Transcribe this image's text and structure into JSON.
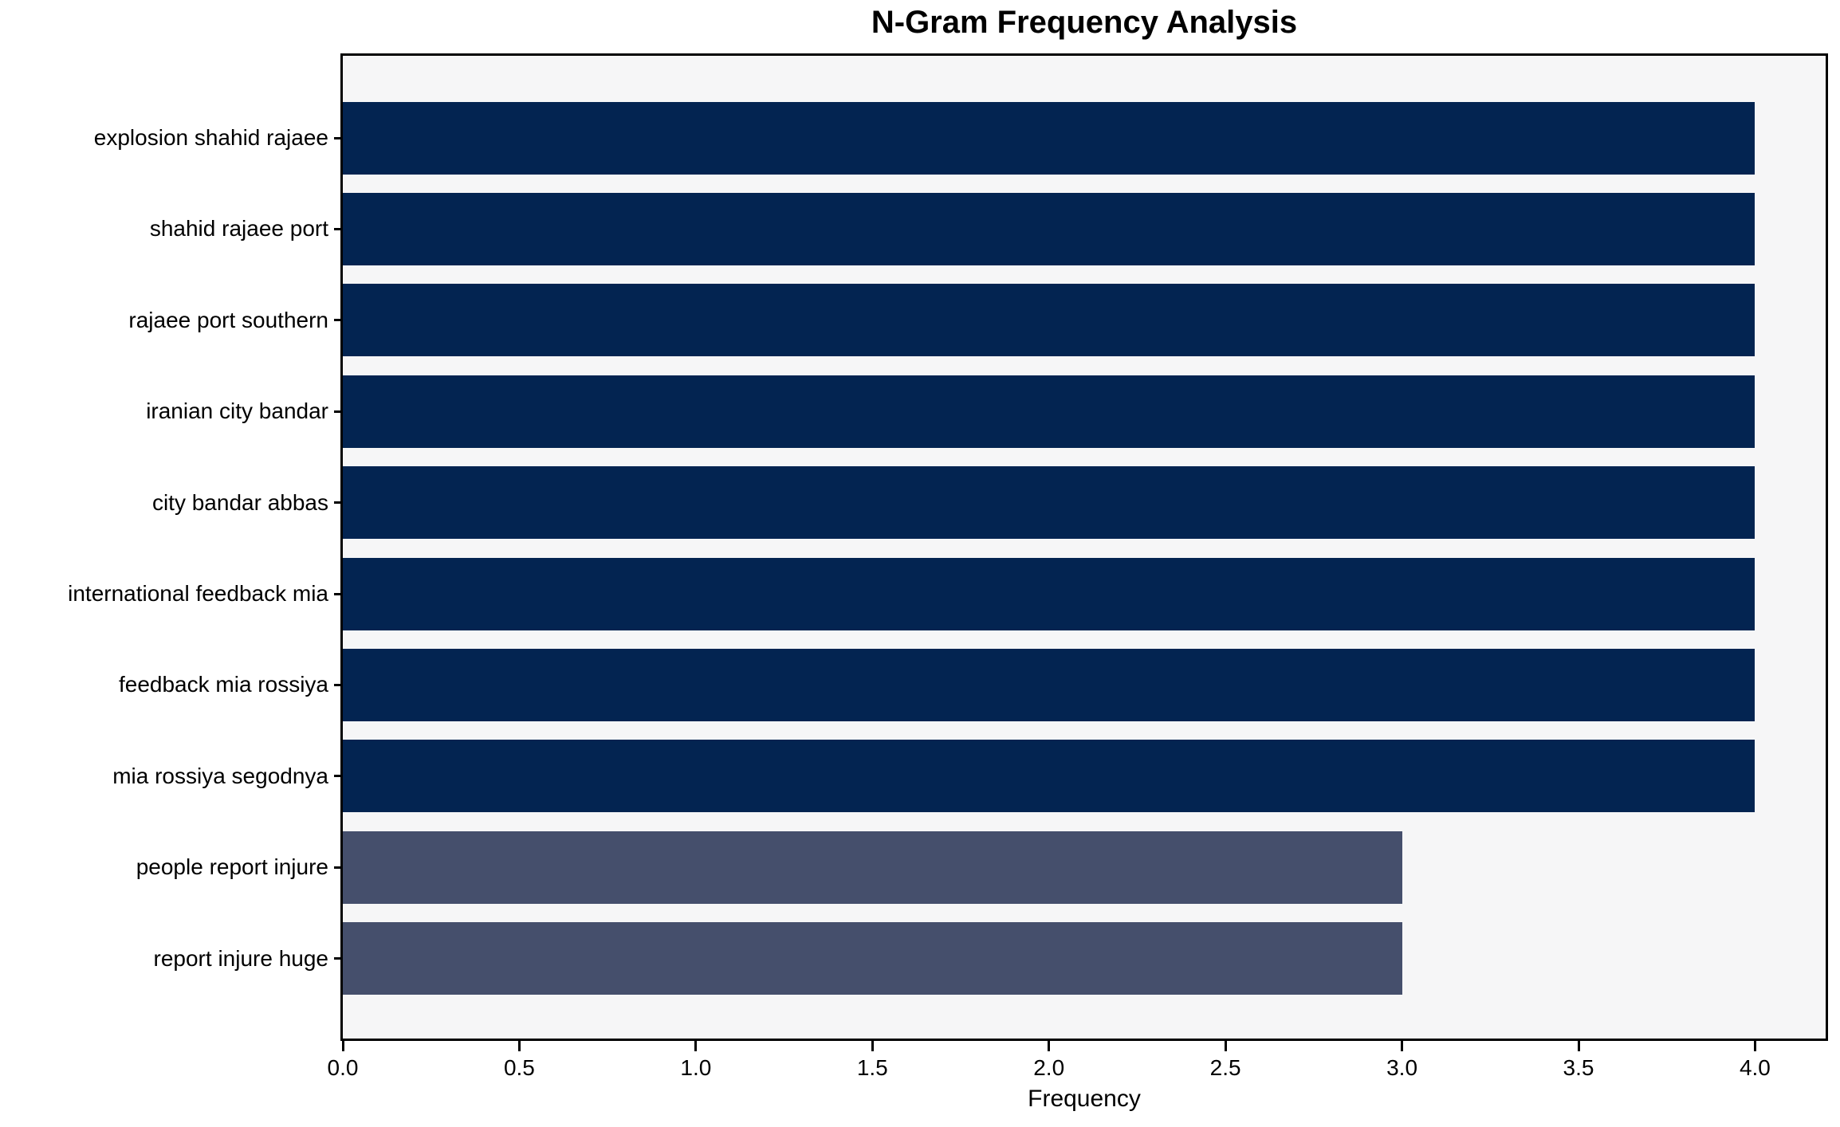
{
  "title": "N-Gram Frequency Analysis",
  "chart_data": {
    "type": "bar",
    "orientation": "horizontal",
    "title": "N-Gram Frequency Analysis",
    "xlabel": "Frequency",
    "ylabel": "",
    "categories": [
      "explosion shahid rajaee",
      "shahid rajaee port",
      "rajaee port southern",
      "iranian city bandar",
      "city bandar abbas",
      "international feedback mia",
      "feedback mia rossiya",
      "mia rossiya segodnya",
      "people report injure",
      "report injure huge"
    ],
    "values": [
      4,
      4,
      4,
      4,
      4,
      4,
      4,
      4,
      3,
      3
    ],
    "colors": [
      "#032451",
      "#032451",
      "#032451",
      "#032451",
      "#032451",
      "#032451",
      "#032451",
      "#032451",
      "#454f6c",
      "#454f6c"
    ],
    "xlim": [
      0,
      4.2
    ],
    "xticks": [
      0.0,
      0.5,
      1.0,
      1.5,
      2.0,
      2.5,
      3.0,
      3.5,
      4.0
    ],
    "xtick_labels": [
      "0.0",
      "0.5",
      "1.0",
      "1.5",
      "2.0",
      "2.5",
      "3.0",
      "3.5",
      "4.0"
    ],
    "grid": false,
    "legend": false,
    "plot_background": "#f6f6f7",
    "figure_background": "#ffffff",
    "spine_color": "#000000",
    "text_color": "#000000"
  }
}
